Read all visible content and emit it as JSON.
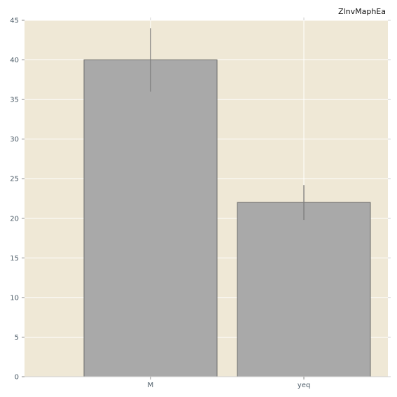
{
  "chart_data": {
    "type": "bar",
    "title": "ZlnvMaphEa",
    "xlabel": "",
    "ylabel": "",
    "categories": [
      "M",
      "yeq"
    ],
    "values": [
      40,
      22
    ],
    "error": [
      [
        36,
        44
      ],
      [
        19.8,
        24.2
      ]
    ],
    "ylim": [
      0,
      45
    ],
    "yticks": [
      0,
      5,
      10,
      15,
      20,
      25,
      30,
      35,
      40,
      45
    ],
    "grid": true,
    "colors": {
      "background": "#efe8d6",
      "bar_fill": "#a9a9a9",
      "bar_edge": "#6b6b6b",
      "error_bar": "#7d7d7d",
      "grid": "#ffffff"
    }
  }
}
